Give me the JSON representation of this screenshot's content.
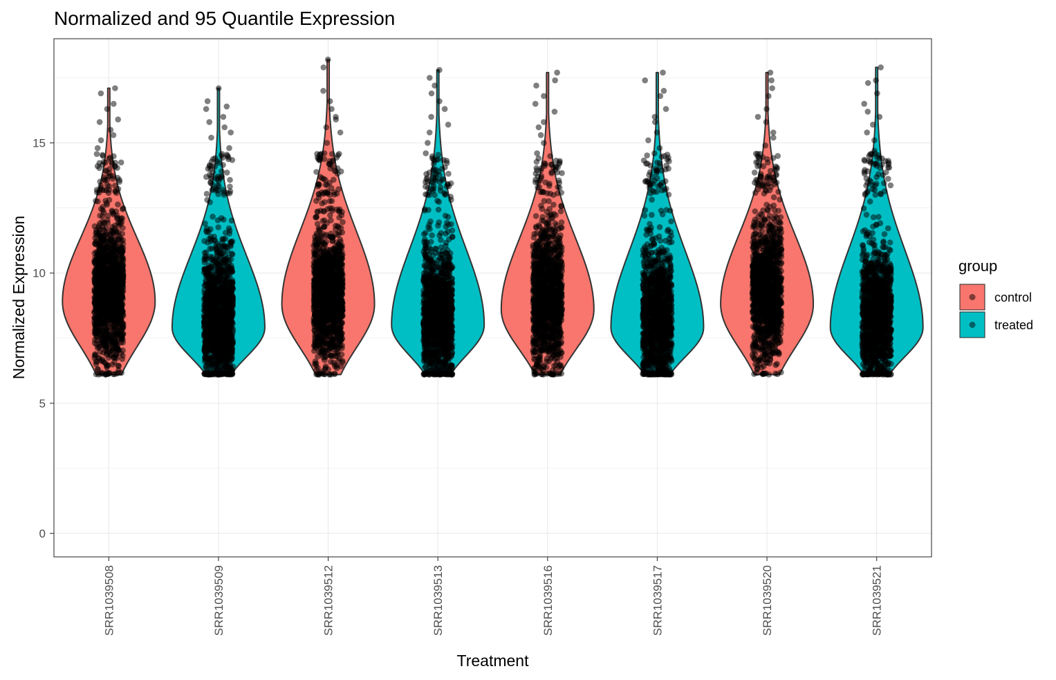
{
  "chart_data": {
    "type": "violin",
    "title": "Normalized and 95 Quantile Expression",
    "xlabel": "Treatment",
    "ylabel": "Normalized Expression",
    "ylim": [
      -0.9,
      19
    ],
    "y_ticks": [
      0,
      5,
      10,
      15
    ],
    "grid": true,
    "legend_position": "right",
    "legend": {
      "title": "group",
      "entries": [
        {
          "name": "control",
          "color": "#F8766D"
        },
        {
          "name": "treated",
          "color": "#00BFC4"
        }
      ]
    },
    "categories": [
      "SRR1039508",
      "SRR1039509",
      "SRR1039512",
      "SRR1039513",
      "SRR1039516",
      "SRR1039517",
      "SRR1039520",
      "SRR1039521"
    ],
    "groups": [
      "control",
      "treated",
      "control",
      "treated",
      "control",
      "treated",
      "control",
      "treated"
    ],
    "min": [
      6.1,
      6.1,
      6.1,
      6.1,
      6.1,
      6.1,
      6.1,
      6.1
    ],
    "max": [
      17.1,
      17.1,
      18.2,
      17.8,
      17.7,
      17.7,
      17.7,
      17.9
    ],
    "mode": [
      8.9,
      7.9,
      8.8,
      8.0,
      8.6,
      7.9,
      8.8,
      7.9
    ],
    "outer_points": [
      [
        17.1,
        16.9,
        16.5,
        16.3,
        15.9,
        15.8,
        15.5,
        15.3,
        15.1,
        14.8,
        14.5,
        14.2,
        14.0
      ],
      [
        17.1,
        16.6,
        16.4,
        16.3,
        16.0,
        15.8,
        15.6,
        15.4,
        15.2,
        14.8,
        14.5,
        14.3
      ],
      [
        18.2,
        17.9,
        17.0,
        16.6,
        16.3,
        16.0,
        15.9,
        15.6,
        15.4,
        15.0,
        14.6,
        14.3
      ],
      [
        17.8,
        17.5,
        17.2,
        16.9,
        16.6,
        16.3,
        16.0,
        15.7,
        15.4,
        15.0,
        14.6,
        14.2
      ],
      [
        17.7,
        17.4,
        17.2,
        16.8,
        16.5,
        16.2,
        15.8,
        15.6,
        15.3,
        15.0,
        14.6,
        14.2
      ],
      [
        17.7,
        17.4,
        17.0,
        16.8,
        16.3,
        16.0,
        15.8,
        15.4,
        15.1,
        14.8,
        14.5,
        14.1
      ],
      [
        17.7,
        17.4,
        17.1,
        16.8,
        16.3,
        16.0,
        15.8,
        15.4,
        15.2,
        14.9,
        14.5,
        14.1
      ],
      [
        17.9,
        17.4,
        17.3,
        16.9,
        16.5,
        16.2,
        16.0,
        15.7,
        15.4,
        15.1,
        14.7,
        14.3
      ]
    ],
    "point_color": "#000000",
    "point_alpha": 0.5
  }
}
